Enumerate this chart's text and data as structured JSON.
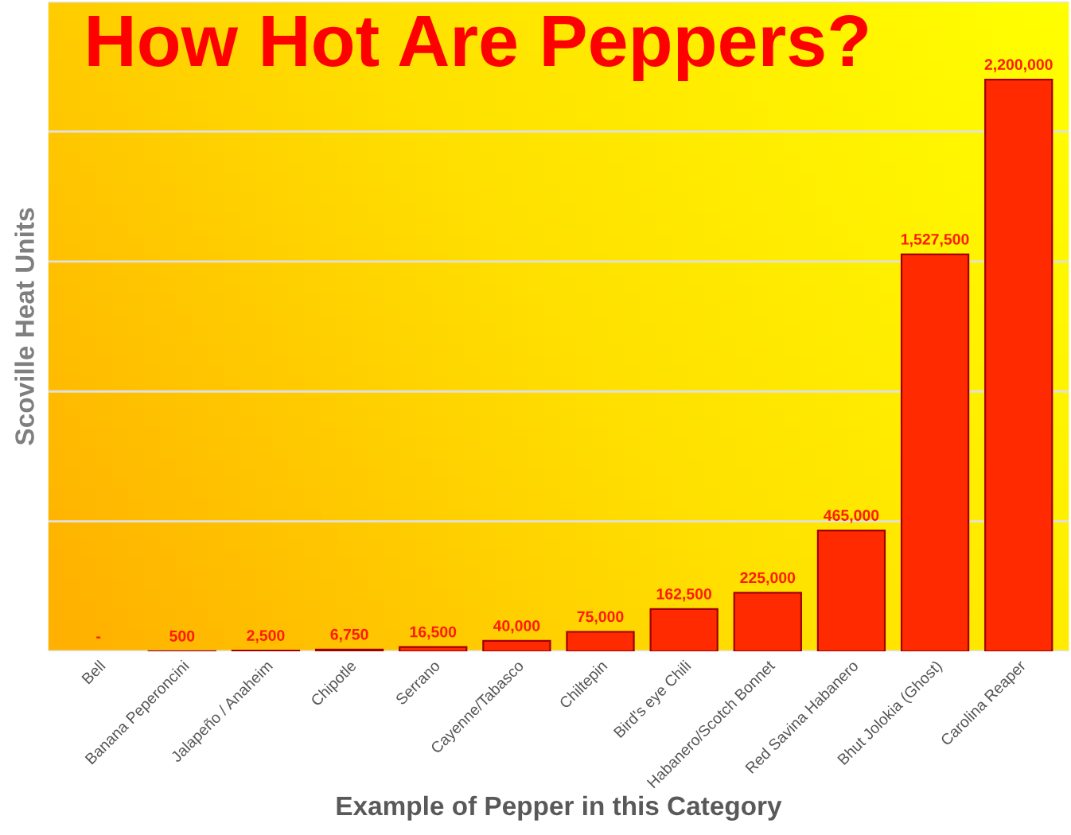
{
  "chart_data": {
    "type": "bar",
    "title": "How Hot Are Peppers?",
    "xlabel": "Example of Pepper in this Category",
    "ylabel": "Scoville Heat Units",
    "categories": [
      "Bell",
      "Banana Peperoncini",
      "Jalapeño / Anaheim",
      "Chipotle",
      "Serrano",
      "Cayenne/Tabasco",
      "Chiltepin",
      "Bird's eye Chili",
      "Habanero/Scotch Bonnet",
      "Red Savina Habanero",
      "Bhut Jolokia (Ghost)",
      "Carolina Reaper"
    ],
    "values": [
      0,
      500,
      2500,
      6750,
      16500,
      40000,
      75000,
      162500,
      225000,
      465000,
      1527500,
      2200000
    ],
    "value_labels": [
      "-",
      "500",
      "2,500",
      "6,750",
      "16,500",
      "40,000",
      "75,000",
      "162,500",
      "225,000",
      "465,000",
      "1,527,500",
      "2,200,000"
    ],
    "color": "#ff2a00",
    "ylim": [
      0,
      2500000
    ],
    "yticks": [
      {
        "value": 0,
        "label": null
      },
      {
        "value": 500000,
        "label": null
      },
      {
        "value": 1000000,
        "label": null
      },
      {
        "value": 1500000,
        "label": null
      },
      {
        "value": 2000000,
        "label": null
      },
      {
        "value": 2500000,
        "label": null
      }
    ],
    "tick_labels": "x",
    "grid": "y"
  }
}
